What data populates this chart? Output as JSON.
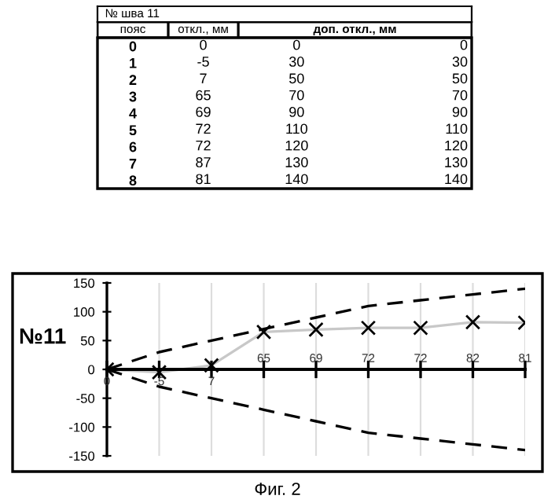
{
  "chart_data": [
    {
      "type": "heatmap",
      "title": "№ шва 11",
      "ylabel": "пояс",
      "categories": [
        "откл., мм",
        "доп. откл., мм",
        null
      ],
      "y_categories": [
        "0",
        "1",
        "2",
        "3",
        "4",
        "5",
        "6",
        "7",
        "8"
      ],
      "cells": [
        [
          0,
          0,
          0
        ],
        [
          -5,
          30,
          30
        ],
        [
          7,
          50,
          50
        ],
        [
          65,
          70,
          70
        ],
        [
          69,
          90,
          90
        ],
        [
          72,
          110,
          110
        ],
        [
          72,
          120,
          120
        ],
        [
          87,
          130,
          130
        ],
        [
          81,
          140,
          140
        ]
      ],
      "data_labels": true
    },
    {
      "type": "line",
      "ylabel": "№11",
      "categories": [
        null,
        null,
        null,
        null,
        null,
        null,
        null,
        null,
        null
      ],
      "series": [
        {
          "color": "#c8c8c8",
          "values": [
            0,
            -5,
            7,
            65,
            69,
            72,
            72,
            82,
            81
          ],
          "marker": "cross",
          "line_style": "solid",
          "value_labels": [
            "0",
            "-5",
            "7",
            "65",
            "69",
            "72",
            "72",
            "82",
            "81"
          ]
        },
        {
          "color": "#000000",
          "values": [
            0,
            30,
            50,
            70,
            90,
            110,
            120,
            130,
            140
          ],
          "marker": "none",
          "line_style": "dashed"
        },
        {
          "color": "#000000",
          "values": [
            0,
            -30,
            -50,
            -70,
            -90,
            -110,
            -120,
            -130,
            -140
          ],
          "marker": "none",
          "line_style": "dashed"
        }
      ],
      "ylim": [
        -150,
        150
      ],
      "yticks": [
        -150,
        -100,
        -50,
        0,
        50,
        100,
        150
      ],
      "grid": "x",
      "annotations": [
        "Фиг. 2"
      ]
    }
  ]
}
